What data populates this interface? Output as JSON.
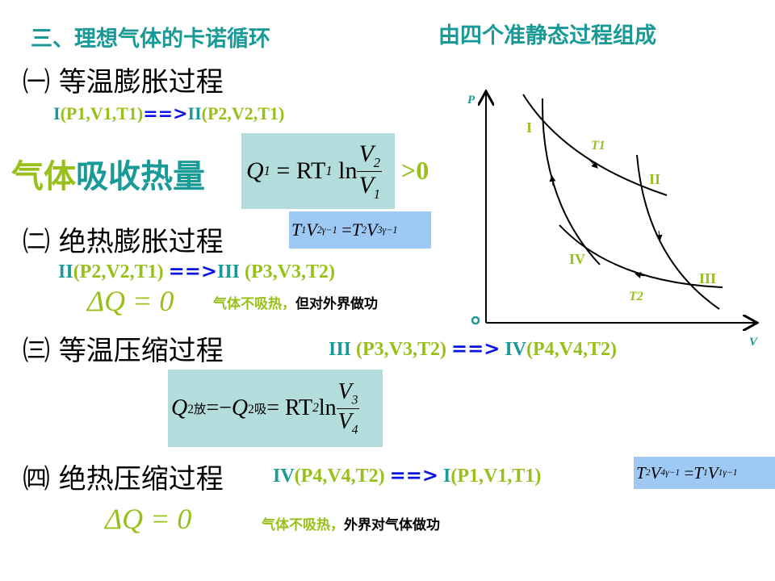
{
  "title": "三、理想气体的卡诺循环",
  "subtitle": "由四个准静态过程组成",
  "colors": {
    "teal": "#1a9a96",
    "lime": "#99c01a",
    "blue": "#0a14e6",
    "formula_box": "#b3dcdc",
    "formula_box_blue": "#9ec9f5"
  },
  "steps": [
    {
      "heading": "㈠ 等温膨胀过程",
      "from_id": "I",
      "from_params": "(P1,V1,T1)",
      "arrow": "==>",
      "to_id": "II",
      "to_params": "(P2,V2,T1)",
      "heat_label_a": "气体",
      "heat_label_b": "吸收热量",
      "formula": {
        "lhs": "Q",
        "lhs_sub": "1",
        "eq": "= RT",
        "t_sub": "1",
        "ln": "ln",
        "num": "V",
        "num_sub": "2",
        "den": "V",
        "den_sub": "1"
      },
      "suffix": ">0"
    },
    {
      "heading": "㈡ 绝热膨胀过程",
      "formula": {
        "a": "T",
        "a_sub": "1",
        "b": "V",
        "b_sub": "2",
        "exp": "γ−1",
        "eq": "=",
        "c": "T",
        "c_sub": "2",
        "d": "V",
        "d_sub": "3",
        "exp2": "γ−1"
      },
      "from_id": "II",
      "from_params": "(P2,V2,T1) ",
      "arrow": "==>",
      "to_id": "III",
      "to_params": " (P3,V3,T2)",
      "dq": "ΔQ = 0",
      "note_a": "气体不吸热，",
      "note_b": "但对外界做功"
    },
    {
      "heading": "㈢ 等温压缩过程",
      "from_id": "III",
      "from_params": " (P3,V3,T2) ",
      "arrow": "==>",
      "to_id": " IV",
      "to_params": "(P4,V4,T2)",
      "formula": {
        "lhs": "Q",
        "lhs_sub": "2放",
        "eq1": "=−",
        "mid": "Q",
        "mid_sub": "2吸",
        "eq2": "= RT",
        "t_sub": "2",
        "ln": "ln",
        "num": "V",
        "num_sub": "3",
        "den": "V",
        "den_sub": "4"
      }
    },
    {
      "heading": "㈣ 绝热压缩过程",
      "from_id": "IV",
      "from_params": "(P4,V4,T2) ",
      "arrow": "==>",
      "to_id": " I",
      "to_params": "(P1,V1,T1)",
      "formula": {
        "a": "T",
        "a_sub": "2",
        "b": "V",
        "b_sub": "4",
        "exp": "γ−1",
        "eq": "=",
        "c": "T",
        "c_sub": "1",
        "d": "V",
        "d_sub": "1",
        "exp2": "γ−1"
      },
      "dq": "ΔQ = 0",
      "note_a": "气体不吸热，",
      "note_b": "外界对气体做功"
    }
  ],
  "diagram": {
    "axis_y": "P",
    "axis_x": "V",
    "origin": "o",
    "points": [
      "I",
      "II",
      "III",
      "IV"
    ],
    "isotherms": [
      "T1",
      "T2"
    ]
  }
}
